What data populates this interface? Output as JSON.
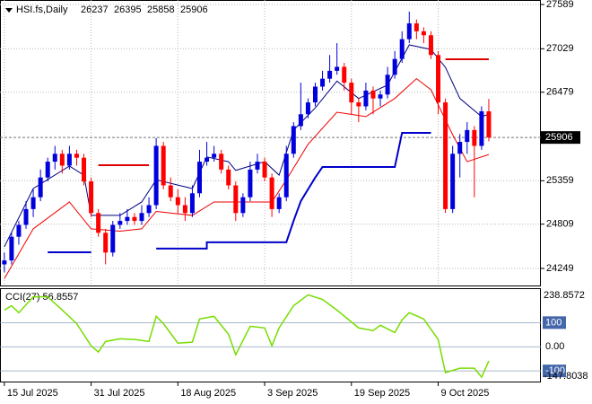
{
  "chart_data": [
    {
      "type": "candlestick",
      "title": "HSI.fs,Daily",
      "ylim": [
        24033,
        27646
      ],
      "yticks": [
        24249,
        24809,
        25359,
        26479,
        27029,
        27589
      ],
      "xlim": [
        -0.6,
        74.2
      ],
      "xticks": [
        {
          "value": 0,
          "label": "15 Jul 2025"
        },
        {
          "value": 12,
          "label": "31 Jul 2025"
        },
        {
          "value": 24,
          "label": "18 Aug 2025"
        },
        {
          "value": 36,
          "label": "3 Sep 2025"
        },
        {
          "value": 48,
          "label": "19 Sep 2025"
        },
        {
          "value": 60,
          "label": "9 Oct 2025"
        }
      ],
      "up_color": "#0000dd",
      "down_color": "#ff0000",
      "grid": true,
      "ohlc": [
        [
          24300,
          24450,
          24200,
          24350
        ],
        [
          24350,
          24700,
          24300,
          24650
        ],
        [
          24650,
          24850,
          24550,
          24800
        ],
        [
          24800,
          25100,
          24750,
          25000
        ],
        [
          25000,
          25250,
          24900,
          25150
        ],
        [
          25150,
          25500,
          25100,
          25400
        ],
        [
          25400,
          25650,
          25350,
          25600
        ],
        [
          25600,
          25800,
          25500,
          25700
        ],
        [
          25700,
          25750,
          25450,
          25550
        ],
        [
          25550,
          25800,
          25500,
          25700
        ],
        [
          25700,
          25750,
          25550,
          25650
        ],
        [
          25650,
          25700,
          25300,
          25350
        ],
        [
          25350,
          25400,
          24900,
          24950
        ],
        [
          24950,
          25000,
          24650,
          24700
        ],
        [
          24700,
          24750,
          24300,
          24450
        ],
        [
          24450,
          24850,
          24400,
          24800
        ],
        [
          24800,
          24950,
          24750,
          24850
        ],
        [
          24850,
          25000,
          24800,
          24900
        ],
        [
          24900,
          24950,
          24800,
          24850
        ],
        [
          24850,
          25050,
          24800,
          24950
        ],
        [
          24950,
          25150,
          24900,
          25050
        ],
        [
          25050,
          25900,
          25000,
          25800
        ],
        [
          25800,
          25850,
          25250,
          25300
        ],
        [
          25300,
          25400,
          25100,
          25150
        ],
        [
          25150,
          25250,
          24950,
          25050
        ],
        [
          25050,
          25150,
          24850,
          24950
        ],
        [
          24950,
          25300,
          24900,
          25200
        ],
        [
          25200,
          25750,
          25150,
          25600
        ],
        [
          25600,
          25850,
          25550,
          25650
        ],
        [
          25650,
          25800,
          25600,
          25700
        ],
        [
          25700,
          25750,
          25450,
          25500
        ],
        [
          25500,
          25550,
          25250,
          25300
        ],
        [
          25300,
          25350,
          24850,
          24950
        ],
        [
          24950,
          25200,
          24900,
          25150
        ],
        [
          25150,
          25600,
          25100,
          25500
        ],
        [
          25500,
          25700,
          25450,
          25600
        ],
        [
          25600,
          25650,
          25350,
          25400
        ],
        [
          25400,
          25450,
          24900,
          25000
        ],
        [
          25000,
          25200,
          24950,
          25150
        ],
        [
          25150,
          25800,
          25100,
          25700
        ],
        [
          25700,
          26100,
          25650,
          26050
        ],
        [
          26050,
          26600,
          26000,
          26200
        ],
        [
          26200,
          26400,
          26150,
          26350
        ],
        [
          26350,
          26600,
          26300,
          26550
        ],
        [
          26550,
          26750,
          26500,
          26650
        ],
        [
          26650,
          26950,
          26600,
          26750
        ],
        [
          26750,
          27100,
          26700,
          26800
        ],
        [
          26800,
          26850,
          26500,
          26600
        ],
        [
          26600,
          26650,
          26200,
          26350
        ],
        [
          26350,
          26400,
          26100,
          26300
        ],
        [
          26300,
          26600,
          26250,
          26500
        ],
        [
          26500,
          26550,
          26200,
          26400
        ],
        [
          26400,
          26500,
          26300,
          26450
        ],
        [
          26450,
          26800,
          26400,
          26700
        ],
        [
          26700,
          27000,
          26650,
          26900
        ],
        [
          26900,
          27250,
          26850,
          27150
        ],
        [
          27150,
          27500,
          27100,
          27350
        ],
        [
          27350,
          27400,
          27150,
          27250
        ],
        [
          27250,
          27300,
          27100,
          27200
        ],
        [
          27200,
          27250,
          26900,
          26950
        ],
        [
          26950,
          27000,
          26200,
          26350
        ],
        [
          26350,
          26400,
          24950,
          25000
        ],
        [
          25000,
          25800,
          24950,
          25700
        ],
        [
          25700,
          25950,
          25400,
          25850
        ],
        [
          25850,
          26100,
          25700,
          26000
        ],
        [
          26000,
          26050,
          25150,
          25800
        ],
        [
          25800,
          26300,
          25750,
          26237
        ],
        [
          26237,
          26395,
          25858,
          25906
        ]
      ],
      "lines": [
        {
          "color": "#000080",
          "width": 1,
          "x": [
            0,
            4,
            9,
            11,
            12,
            16,
            19,
            21,
            26,
            28,
            31,
            32,
            36,
            38,
            40,
            43,
            46,
            49,
            53,
            56,
            59,
            61,
            63,
            66,
            67
          ],
          "values": [
            24522,
            25260,
            25545,
            25430,
            24920,
            24920,
            25090,
            25370,
            25260,
            25660,
            25600,
            25490,
            25600,
            25430,
            26000,
            26280,
            26620,
            26400,
            26570,
            27078,
            27020,
            26794,
            26400,
            26170,
            26200
          ]
        },
        {
          "color": "#ee0000",
          "width": 1,
          "x": [
            0,
            4,
            9,
            12,
            16,
            19,
            21,
            26,
            29,
            32,
            37,
            39,
            42,
            46,
            50,
            54,
            57,
            59,
            62,
            64,
            67
          ],
          "values": [
            24120,
            24750,
            25090,
            24750,
            24720,
            24750,
            24970,
            24920,
            25090,
            25090,
            25090,
            25370,
            25820,
            26226,
            26170,
            26400,
            26650,
            26510,
            25940,
            25600,
            25690
          ]
        },
        {
          "color": "#0000cc",
          "width": 2,
          "x": [
            6,
            12
          ],
          "values": [
            24454,
            24454
          ]
        },
        {
          "color": "#0000cc",
          "width": 2,
          "x": [
            21,
            28,
            28,
            39,
            40,
            41,
            42,
            43,
            44,
            54,
            55,
            59
          ],
          "values": [
            24500,
            24500,
            24580,
            24580,
            24850,
            25100,
            25250,
            25400,
            25533,
            25533,
            25965,
            25965
          ]
        },
        {
          "color": "#dd0000",
          "width": 2,
          "x": [
            13,
            20
          ],
          "values": [
            25556,
            25556
          ]
        },
        {
          "color": "#dd0000",
          "width": 2,
          "x": [
            61,
            67
          ],
          "values": [
            26896,
            26896
          ]
        }
      ]
    },
    {
      "type": "line",
      "title": "CCI(27) 56.8557",
      "ylim": [
        -147.8038,
        238.8572
      ],
      "yticks": [
        -100,
        {
          "value": 0,
          "label": "0.00"
        },
        100
      ],
      "color": "#77dd00",
      "x": [
        0,
        1,
        2,
        4,
        6,
        8,
        10,
        12,
        13,
        14,
        16,
        18,
        20,
        21,
        22,
        24,
        26,
        27,
        29,
        31,
        32,
        34,
        36,
        37,
        38,
        40,
        42,
        44,
        46,
        49,
        51,
        52,
        54,
        55,
        56,
        58,
        60,
        61,
        63,
        65,
        66,
        67
      ],
      "values": [
        152,
        170,
        141,
        207,
        207,
        152,
        96,
        4,
        -22,
        22,
        33,
        30,
        22,
        126,
        96,
        15,
        19,
        115,
        126,
        52,
        -33,
        85,
        78,
        4,
        78,
        170,
        215,
        196,
        152,
        78,
        67,
        89,
        59,
        111,
        141,
        115,
        30,
        -107,
        -89,
        -89,
        -126,
        -59
      ]
    }
  ]
}
